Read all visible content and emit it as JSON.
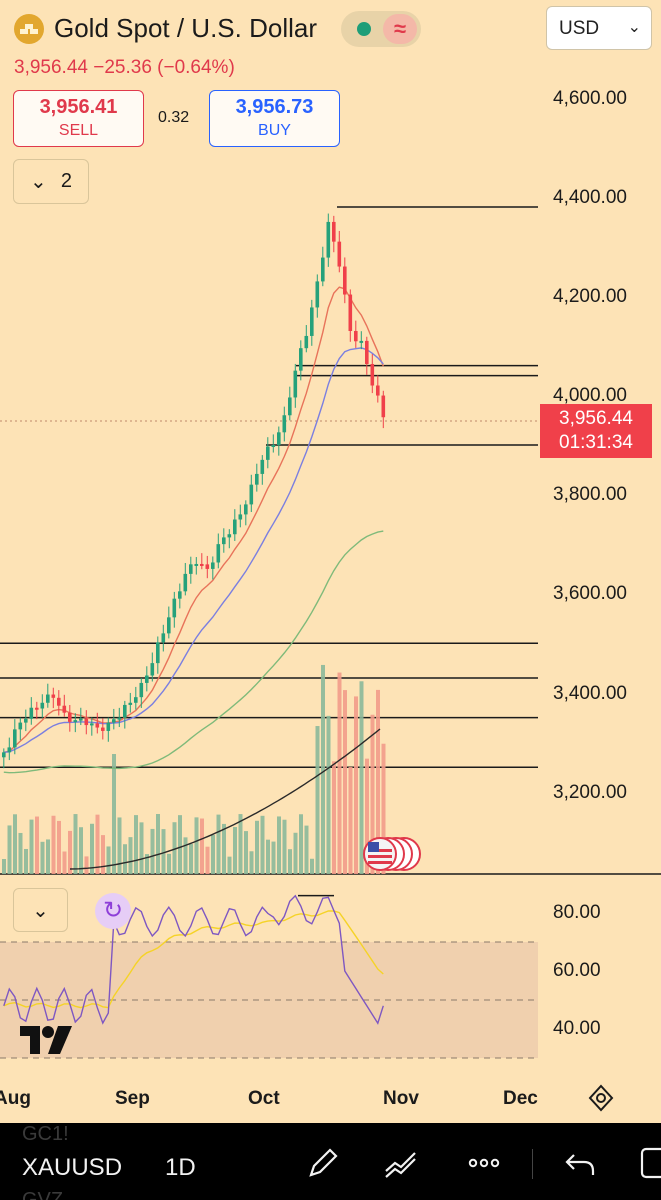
{
  "header": {
    "title": "Gold Spot / U.S. Dollar",
    "price_line": "3,956.44  −25.36 (−0.64%)",
    "currency": "USD",
    "sell": {
      "price": "3,956.41",
      "label": "SELL"
    },
    "buy": {
      "price": "3,956.73",
      "label": "BUY"
    },
    "spread": "0.32",
    "indicators_count": "2"
  },
  "price_axis": [
    "4,600.00",
    "4,400.00",
    "4,200.00",
    "4,000.00",
    "3,800.00",
    "3,600.00",
    "3,400.00",
    "3,200.00"
  ],
  "current_price_tag": {
    "price": "3,956.44",
    "countdown": "01:31:34"
  },
  "rsi_axis": [
    "80.00",
    "60.00",
    "40.00"
  ],
  "time_axis": [
    "Aug",
    "Sep",
    "Oct",
    "Nov",
    "Dec"
  ],
  "toolbar": {
    "symbol": "XAUUSD",
    "interval": "1D",
    "ghost_top": "GC1!",
    "ghost_bottom": "GVZ"
  },
  "colors": {
    "up": "#26a17b",
    "down": "#f0404a",
    "ema_fast": "#e8735a",
    "ema_mid": "#7b7fe0",
    "sma_long": "#7fba7a",
    "volume_ma": "#2a2a2a",
    "rsi": "#7e57c2",
    "rsi_ma": "#f5d327"
  },
  "icons": [
    "gold-coin-icon",
    "market-open-dot-icon",
    "wave-icon",
    "chevron-down-icon",
    "refresh-icon",
    "tradingview-logo-icon",
    "gear-icon",
    "us-flag-icon",
    "pencil-icon",
    "indicators-icon",
    "more-icon",
    "undo-icon",
    "layout-icon"
  ],
  "chart_data": {
    "type": "candlestick",
    "title": "Gold Spot / U.S. Dollar",
    "interval": "1D",
    "x_range": [
      "Aug",
      "Nov"
    ],
    "ylim": [
      3100,
      4650
    ],
    "close_approx": [
      3290,
      3340,
      3370,
      3380,
      3390,
      3360,
      3345,
      3335,
      3330,
      3340,
      3350,
      3380,
      3420,
      3460,
      3520,
      3590,
      3640,
      3660,
      3650,
      3700,
      3720,
      3760,
      3820,
      3870,
      3900,
      3960,
      4050,
      4120,
      4230,
      4350,
      4260,
      4130,
      4110,
      4020,
      3956
    ],
    "horizontal_levels": [
      4380,
      4060,
      4040,
      3900,
      3500,
      3430,
      3350,
      3250
    ],
    "last_price": 3956.44,
    "change": -25.36,
    "change_pct": -0.64,
    "rsi": {
      "ylim": [
        30,
        90
      ],
      "levels": [
        70,
        50,
        30
      ],
      "last": 48
    }
  }
}
